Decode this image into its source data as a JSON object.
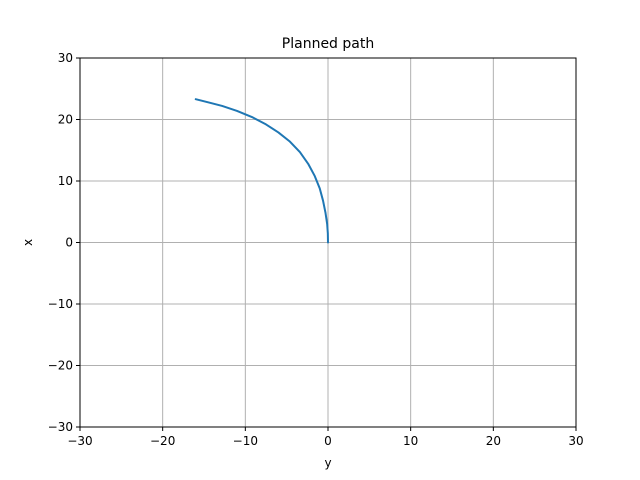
{
  "chart_data": {
    "type": "line",
    "title": "Planned path",
    "xlabel": "y",
    "ylabel": "x",
    "xlim": [
      -30,
      30
    ],
    "ylim": [
      -30,
      30
    ],
    "xticks": [
      -30,
      -20,
      -10,
      0,
      10,
      20,
      30
    ],
    "yticks": [
      -30,
      -20,
      -10,
      0,
      10,
      20,
      30
    ],
    "grid": true,
    "line_color": "#1f77b4",
    "grid_color": "#b0b0b0",
    "series": [
      {
        "x": [
          0,
          -0.02,
          -0.1,
          -0.3,
          -0.6,
          -1.0,
          -1.6,
          -2.4,
          -3.4,
          -4.6,
          -6.0,
          -7.5,
          -9.2,
          -11.0,
          -12.8,
          -14.5,
          -16.0
        ],
        "y": [
          0,
          1.5,
          3.0,
          4.8,
          6.8,
          8.8,
          10.8,
          12.8,
          14.7,
          16.4,
          17.9,
          19.2,
          20.4,
          21.4,
          22.2,
          22.8,
          23.3
        ]
      }
    ]
  }
}
